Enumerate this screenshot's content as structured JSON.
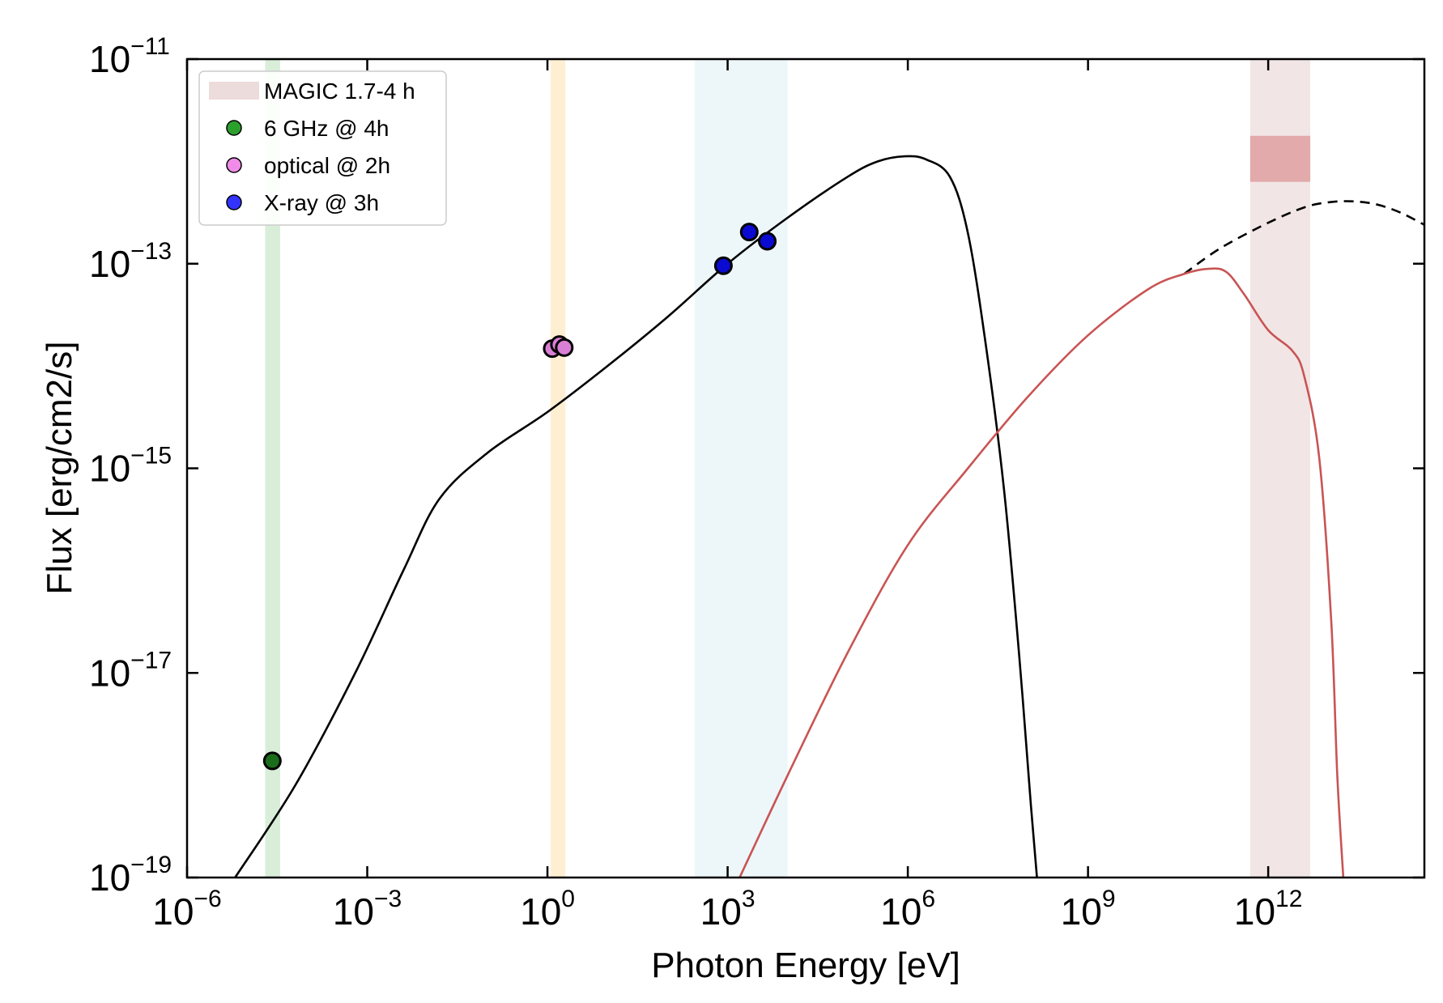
{
  "chart_data": {
    "type": "scatter",
    "xlabel": "Photon Energy [eV]",
    "ylabel": "Flux [erg/cm2/s]",
    "xscale": "log",
    "yscale": "log",
    "xlim_log10": [
      -6,
      14.6
    ],
    "ylim_log10": [
      -19,
      -11
    ],
    "x_ticks": [
      {
        "base": "10",
        "exp": "−6",
        "log": -6
      },
      {
        "base": "10",
        "exp": "−3",
        "log": -3
      },
      {
        "base": "10",
        "exp": "0",
        "log": 0
      },
      {
        "base": "10",
        "exp": "3",
        "log": 3
      },
      {
        "base": "10",
        "exp": "6",
        "log": 6
      },
      {
        "base": "10",
        "exp": "9",
        "log": 9
      },
      {
        "base": "10",
        "exp": "12",
        "log": 12
      }
    ],
    "y_ticks": [
      {
        "base": "10",
        "exp": "−19",
        "log": -19
      },
      {
        "base": "10",
        "exp": "−17",
        "log": -17
      },
      {
        "base": "10",
        "exp": "−15",
        "log": -15
      },
      {
        "base": "10",
        "exp": "−13",
        "log": -13
      },
      {
        "base": "10",
        "exp": "−11",
        "log": -11
      }
    ],
    "bands": [
      {
        "name": "radio-band",
        "x_log10": [
          -4.7,
          -4.45
        ],
        "color": "#2ca02c",
        "opacity": 0.18
      },
      {
        "name": "optical-band",
        "x_log10": [
          0.05,
          0.3
        ],
        "color": "#ffb833",
        "opacity": 0.22
      },
      {
        "name": "xray-band",
        "x_log10": [
          2.45,
          4.0
        ],
        "color": "#a6d8e8",
        "opacity": 0.2
      },
      {
        "name": "magic-band",
        "x_log10": [
          11.7,
          12.7
        ],
        "color": "#c48a8a",
        "opacity": 0.22
      }
    ],
    "magic_box": {
      "x_log10": [
        11.7,
        12.7
      ],
      "y_log10": [
        -12.2,
        -11.75
      ],
      "color": "#d98a8a",
      "opacity": 0.65
    },
    "series": [
      {
        "name": "6 GHz @ 4h",
        "color": "#1a6e1a",
        "legend_color": "#2ca02c",
        "points": [
          {
            "x_log10": -4.58,
            "y_log10": -17.86
          }
        ]
      },
      {
        "name": "optical @ 2h",
        "color": "#da7fd6",
        "legend_color": "#f08ce8",
        "points": [
          {
            "x_log10": 0.08,
            "y_log10": -13.83
          },
          {
            "x_log10": 0.2,
            "y_log10": -13.79
          },
          {
            "x_log10": 0.28,
            "y_log10": -13.82
          }
        ]
      },
      {
        "name": "X-ray @ 3h",
        "color": "#0a0ad0",
        "legend_color": "#3333ff",
        "points": [
          {
            "x_log10": 2.93,
            "y_log10": -13.02
          },
          {
            "x_log10": 3.36,
            "y_log10": -12.69
          },
          {
            "x_log10": 3.66,
            "y_log10": -12.78
          }
        ]
      }
    ],
    "curves": [
      {
        "name": "synchrotron-model",
        "color": "#000000",
        "dash": "",
        "points": [
          [
            -5.2,
            -19.0
          ],
          [
            -4.2,
            -18.1
          ],
          [
            -3.2,
            -17.0
          ],
          [
            -2.4,
            -16.0
          ],
          [
            -1.8,
            -15.3
          ],
          [
            -1.0,
            -14.85
          ],
          [
            0.0,
            -14.45
          ],
          [
            1.0,
            -14.0
          ],
          [
            2.0,
            -13.52
          ],
          [
            3.0,
            -13.0
          ],
          [
            4.0,
            -12.55
          ],
          [
            5.0,
            -12.15
          ],
          [
            5.5,
            -12.0
          ],
          [
            5.95,
            -11.95
          ],
          [
            6.3,
            -11.98
          ],
          [
            6.7,
            -12.15
          ],
          [
            7.0,
            -12.7
          ],
          [
            7.3,
            -13.8
          ],
          [
            7.6,
            -15.2
          ],
          [
            7.85,
            -16.8
          ],
          [
            8.05,
            -18.3
          ],
          [
            8.15,
            -19.0
          ]
        ]
      },
      {
        "name": "ic-model-intrinsic",
        "color": "#000000",
        "dash": "12,8",
        "points": [
          [
            10.6,
            -13.1
          ],
          [
            11.2,
            -12.85
          ],
          [
            12.0,
            -12.6
          ],
          [
            12.6,
            -12.45
          ],
          [
            13.0,
            -12.4
          ],
          [
            13.4,
            -12.39
          ],
          [
            13.8,
            -12.42
          ],
          [
            14.2,
            -12.5
          ],
          [
            14.6,
            -12.62
          ]
        ]
      },
      {
        "name": "ic-model-absorbed",
        "color": "#c95454",
        "dash": "",
        "points": [
          [
            3.2,
            -19.0
          ],
          [
            4.0,
            -18.0
          ],
          [
            5.0,
            -16.8
          ],
          [
            6.0,
            -15.75
          ],
          [
            7.0,
            -15.0
          ],
          [
            8.0,
            -14.3
          ],
          [
            9.0,
            -13.7
          ],
          [
            10.0,
            -13.25
          ],
          [
            10.6,
            -13.1
          ],
          [
            11.0,
            -13.05
          ],
          [
            11.3,
            -13.08
          ],
          [
            11.6,
            -13.3
          ],
          [
            12.0,
            -13.65
          ],
          [
            12.4,
            -13.85
          ],
          [
            12.6,
            -14.1
          ],
          [
            12.85,
            -14.9
          ],
          [
            13.05,
            -16.5
          ],
          [
            13.15,
            -18.0
          ],
          [
            13.25,
            -19.0
          ]
        ]
      }
    ],
    "legend": {
      "placement": "top-left",
      "entries": [
        {
          "label": "MAGIC 1.7-4 h",
          "kind": "patch",
          "color": "#c48a8a"
        },
        {
          "label": "6 GHz @ 4h",
          "kind": "marker",
          "color": "#2ca02c"
        },
        {
          "label": "optical @ 2h",
          "kind": "marker",
          "color": "#f08ce8"
        },
        {
          "label": "X-ray @ 3h",
          "kind": "marker",
          "color": "#3333ff"
        }
      ]
    }
  }
}
